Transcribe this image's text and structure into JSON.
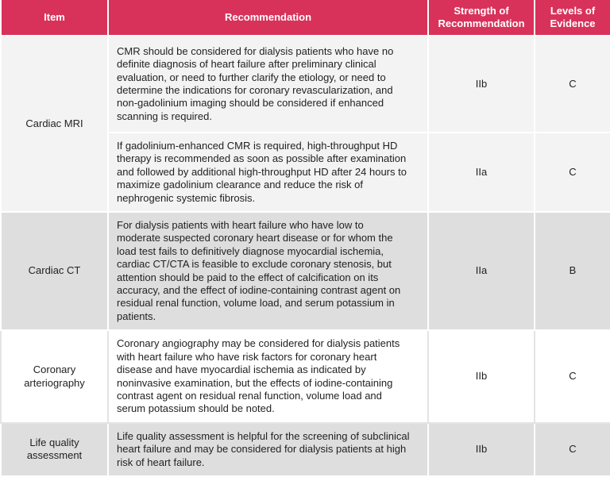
{
  "table": {
    "header": [
      "Item",
      "Recommendation",
      "Strength of Recommendation",
      "Levels of Evidence"
    ],
    "rows": [
      {
        "item": "Cardiac MRI",
        "entries": [
          {
            "recommendation": "CMR should be considered for dialysis patients who have no definite diagnosis of heart failure after preliminary clinical evaluation, or need to further clarify the etiology, or need to determine the indications for coronary revascularization, and non-gadolinium imaging should be considered if enhanced scanning is required.",
            "strength": "IIb",
            "evidence": "C"
          },
          {
            "recommendation": "If gadolinium-enhanced CMR is required, high-throughput HD therapy is recommended as soon as possible after examination and followed by additional high-throughput HD after 24 hours to maximize gadolinium clearance and reduce the risk of nephrogenic systemic fibrosis.",
            "strength": "IIa",
            "evidence": "C"
          }
        ]
      },
      {
        "item": "Cardiac CT",
        "entries": [
          {
            "recommendation": "For dialysis patients with heart failure who have low to moderate suspected coronary heart disease or for whom the load test fails to definitively diagnose myocardial ischemia, cardiac CT/CTA is feasible to exclude coronary stenosis, but attention should be paid to the effect of calcification on its accuracy, and the effect of iodine-containing contrast agent on residual renal function, volume load, and serum potassium in patients.",
            "strength": "IIa",
            "evidence": "B"
          }
        ]
      },
      {
        "item": "Coronary arteriography",
        "entries": [
          {
            "recommendation": "Coronary angiography may be considered for dialysis patients with heart failure who have risk factors for coronary heart disease and have myocardial ischemia as indicated by noninvasive examination, but the effects of iodine-containing contrast agent on residual renal function, volume load and serum potassium should be noted.",
            "strength": "IIb",
            "evidence": "C"
          }
        ]
      },
      {
        "item": "Life quality assessment",
        "entries": [
          {
            "recommendation": "Life quality assessment is helpful for the screening of subclinical heart failure and may be considered for dialysis patients at high risk of heart failure.",
            "strength": "IIb",
            "evidence": "C"
          }
        ]
      }
    ]
  }
}
